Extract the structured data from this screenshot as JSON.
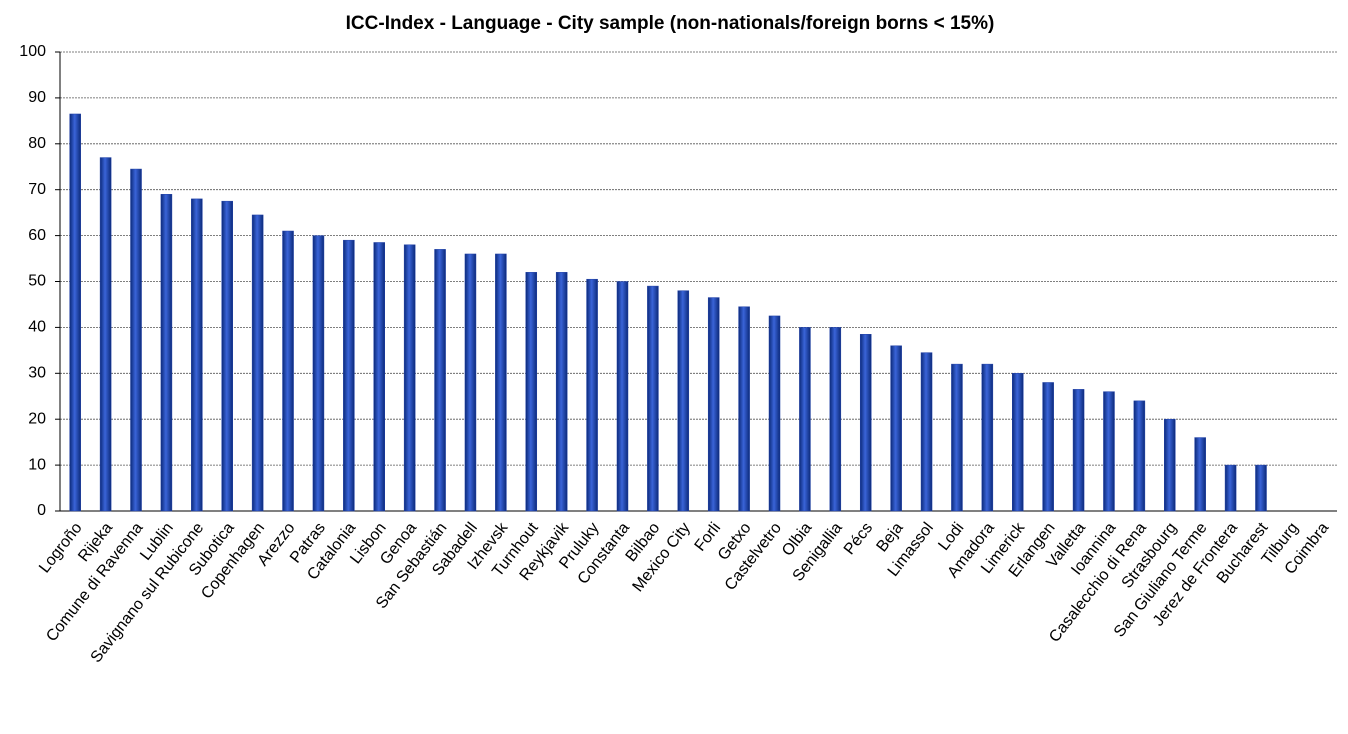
{
  "chart_data": {
    "type": "bar",
    "title": "ICC-Index - Language -  City sample (non-nationals/foreign borns < 15%)",
    "categories": [
      "Logroño",
      "Rijeka",
      "Comune di Ravenna",
      "Lublin",
      "Savignano sul Rubicone",
      "Subotica",
      "Copenhagen",
      "Arezzo",
      "Patras",
      "Catalonia",
      "Lisbon",
      "Genoa",
      "San Sebastián",
      "Sabadell",
      "Izhevsk",
      "Turnhout",
      "Reykjavik",
      "Pruluky",
      "Constanta",
      "Bilbao",
      "Mexico City",
      "Forli",
      "Getxo",
      "Castelvetro",
      "Olbia",
      "Senigallia",
      "Pécs",
      "Beja",
      "Limassol",
      "Lodi",
      "Amadora",
      "Limerick",
      "Erlangen",
      "Valletta",
      "Ioannina",
      "Casalecchio di Rena",
      "Strasbourg",
      "San Giuliano Terme",
      "Jerez de Frontera",
      "Bucharest",
      "Tilburg",
      "Coimbra"
    ],
    "values": [
      86.5,
      77,
      74.5,
      69,
      68,
      67.5,
      64.5,
      61,
      60,
      59,
      58.5,
      58,
      57,
      56,
      56,
      52,
      52,
      50.5,
      50,
      49,
      48,
      46.5,
      44.5,
      42.5,
      40,
      40,
      38.5,
      36,
      34.5,
      32,
      32,
      30,
      28,
      26.5,
      26,
      24,
      20,
      16,
      10,
      10,
      0,
      0
    ],
    "color": "#1f3fa6",
    "ylim": [
      0,
      100
    ],
    "yticks": [
      0,
      10,
      20,
      30,
      40,
      50,
      60,
      70,
      80,
      90,
      100
    ],
    "grid": true
  }
}
